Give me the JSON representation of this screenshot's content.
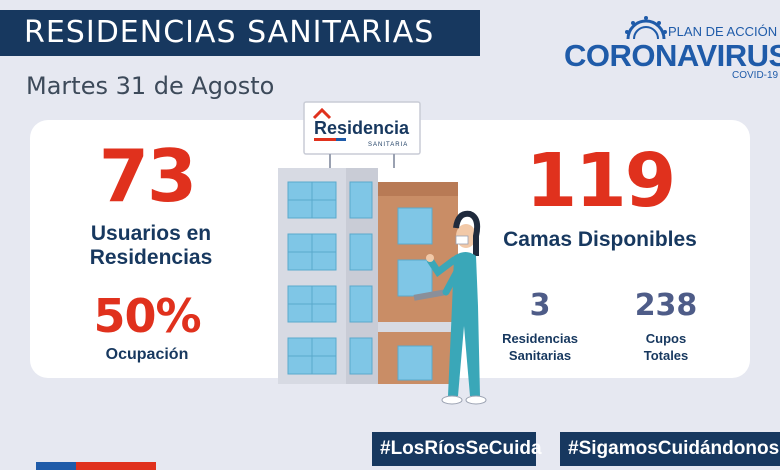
{
  "header": {
    "title": "RESIDENCIAS SANITARIAS",
    "date": "Martes 31 de Agosto"
  },
  "brand": {
    "plan": "PLAN DE ACCIÓN",
    "name": "CORONAVIRUS",
    "sub": "COVID-19"
  },
  "sign": {
    "name": "Residencia",
    "sub": "SANITARIA"
  },
  "stats": {
    "usuarios_value": "73",
    "usuarios_label_1": "Usuarios en",
    "usuarios_label_2": "Residencias",
    "ocupacion_value": "50%",
    "ocupacion_label": "Ocupación",
    "camas_value": "119",
    "camas_label": "Camas Disponibles",
    "residencias_value": "3",
    "residencias_label_1": "Residencias",
    "residencias_label_2": "Sanitarias",
    "cupos_value": "238",
    "cupos_label_1": "Cupos",
    "cupos_label_2": "Totales"
  },
  "footer": {
    "tag1": "#LosRíosSeCuida",
    "tag2": "#SigamosCuidándonos"
  },
  "colors": {
    "navy": "#17385f",
    "red": "#e0311d",
    "brand_blue": "#1f5ba9",
    "teal": "#3aa7b8"
  }
}
